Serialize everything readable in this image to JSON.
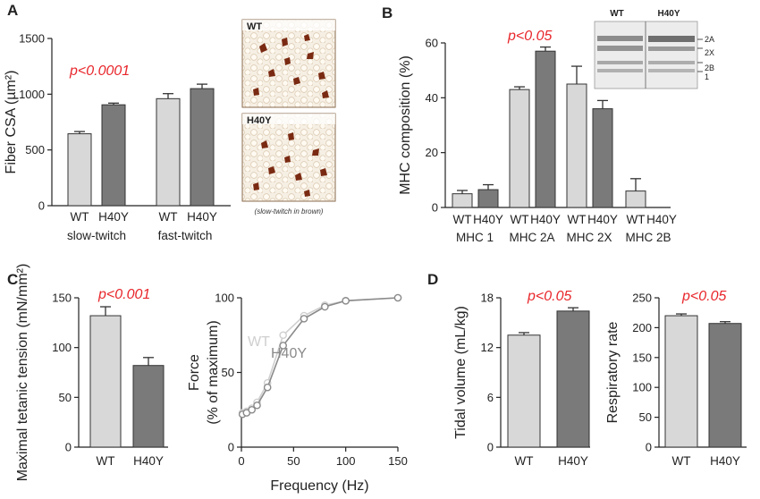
{
  "panels": {
    "A": {
      "letter": "A",
      "pvalue": "p<0.0001",
      "image_caption": "(slow-twitch in brown)",
      "image_labels": [
        "WT",
        "H40Y"
      ]
    },
    "B": {
      "letter": "B",
      "pvalue": "p<0.05",
      "gel_labels": {
        "top": [
          "WT",
          "H40Y"
        ],
        "bands": [
          "2A",
          "2X",
          "2B",
          "1"
        ]
      }
    },
    "C": {
      "letter": "C",
      "pvalue": "p<0.001",
      "line_labels": [
        "WT",
        "H40Y"
      ]
    },
    "D": {
      "letter": "D",
      "pvalue_left": "p<0.05",
      "pvalue_right": "p<0.05"
    }
  },
  "colors": {
    "wt": "#d8d8d8",
    "h40y": "#7a7a7a",
    "pvalue": "#e8262b",
    "line_wt": "#cfcfcf",
    "line_h40y": "#8a8a8a"
  },
  "chart_data": [
    {
      "id": "A",
      "type": "bar",
      "ylabel": "Fiber CSA (µm²)",
      "ylim": [
        0,
        1500
      ],
      "yticks": [
        0,
        500,
        1000,
        1500
      ],
      "groups": [
        {
          "name": "slow-twitch",
          "bars": [
            {
              "label": "WT",
              "value": 645,
              "err": 20
            },
            {
              "label": "H40Y",
              "value": 905,
              "err": 15
            }
          ]
        },
        {
          "name": "fast-twitch",
          "bars": [
            {
              "label": "WT",
              "value": 960,
              "err": 45
            },
            {
              "label": "H40Y",
              "value": 1050,
              "err": 40
            }
          ]
        }
      ]
    },
    {
      "id": "B",
      "type": "bar",
      "ylabel": "MHC composition (%)",
      "ylim": [
        0,
        60
      ],
      "yticks": [
        0,
        20,
        40,
        60
      ],
      "groups": [
        {
          "name": "MHC 1",
          "bars": [
            {
              "label": "WT",
              "value": 5,
              "err": 1.2
            },
            {
              "label": "H40Y",
              "value": 6.5,
              "err": 1.8
            }
          ]
        },
        {
          "name": "MHC 2A",
          "bars": [
            {
              "label": "WT",
              "value": 43,
              "err": 1
            },
            {
              "label": "H40Y",
              "value": 57,
              "err": 1.5
            }
          ]
        },
        {
          "name": "MHC 2X",
          "bars": [
            {
              "label": "WT",
              "value": 45,
              "err": 6.5
            },
            {
              "label": "H40Y",
              "value": 36,
              "err": 3
            }
          ]
        },
        {
          "name": "MHC 2B",
          "bars": [
            {
              "label": "WT",
              "value": 6,
              "err": 4.5
            },
            {
              "label": "H40Y",
              "value": 0,
              "err": 0
            }
          ]
        }
      ]
    },
    {
      "id": "C1",
      "type": "bar",
      "ylabel": "Maximal tetanic tension (mN/mm²)",
      "ylim": [
        0,
        150
      ],
      "yticks": [
        0,
        50,
        100,
        150
      ],
      "bars": [
        {
          "label": "WT",
          "value": 132,
          "err": 9
        },
        {
          "label": "H40Y",
          "value": 82,
          "err": 8
        }
      ]
    },
    {
      "id": "C2",
      "type": "line",
      "xlabel": "Frequency (Hz)",
      "ylabel": "Force (% of maximum)",
      "xlim": [
        0,
        150
      ],
      "ylim": [
        0,
        100
      ],
      "xticks": [
        0,
        50,
        100,
        150
      ],
      "yticks": [
        0,
        50,
        100
      ],
      "series": [
        {
          "name": "WT",
          "x": [
            1,
            5,
            10,
            15,
            25,
            40,
            60,
            80,
            100,
            150
          ],
          "y": [
            23,
            24,
            26,
            30,
            43,
            75,
            88,
            95,
            98,
            100
          ]
        },
        {
          "name": "H40Y",
          "x": [
            1,
            5,
            10,
            15,
            25,
            40,
            60,
            80,
            100,
            150
          ],
          "y": [
            22,
            23,
            25,
            28,
            40,
            68,
            86,
            94,
            98,
            100
          ]
        }
      ]
    },
    {
      "id": "D1",
      "type": "bar",
      "ylabel": "Tidal volume (mL/kg)",
      "ylim": [
        0,
        18
      ],
      "yticks": [
        0,
        6,
        12,
        18
      ],
      "bars": [
        {
          "label": "WT",
          "value": 13.5,
          "err": 0.3
        },
        {
          "label": "H40Y",
          "value": 16.4,
          "err": 0.4
        }
      ]
    },
    {
      "id": "D2",
      "type": "bar",
      "ylabel": "Respiratory rate",
      "ylim": [
        0,
        250
      ],
      "yticks": [
        0,
        50,
        100,
        150,
        200,
        250
      ],
      "bars": [
        {
          "label": "WT",
          "value": 220,
          "err": 3
        },
        {
          "label": "H40Y",
          "value": 207,
          "err": 3
        }
      ]
    }
  ]
}
